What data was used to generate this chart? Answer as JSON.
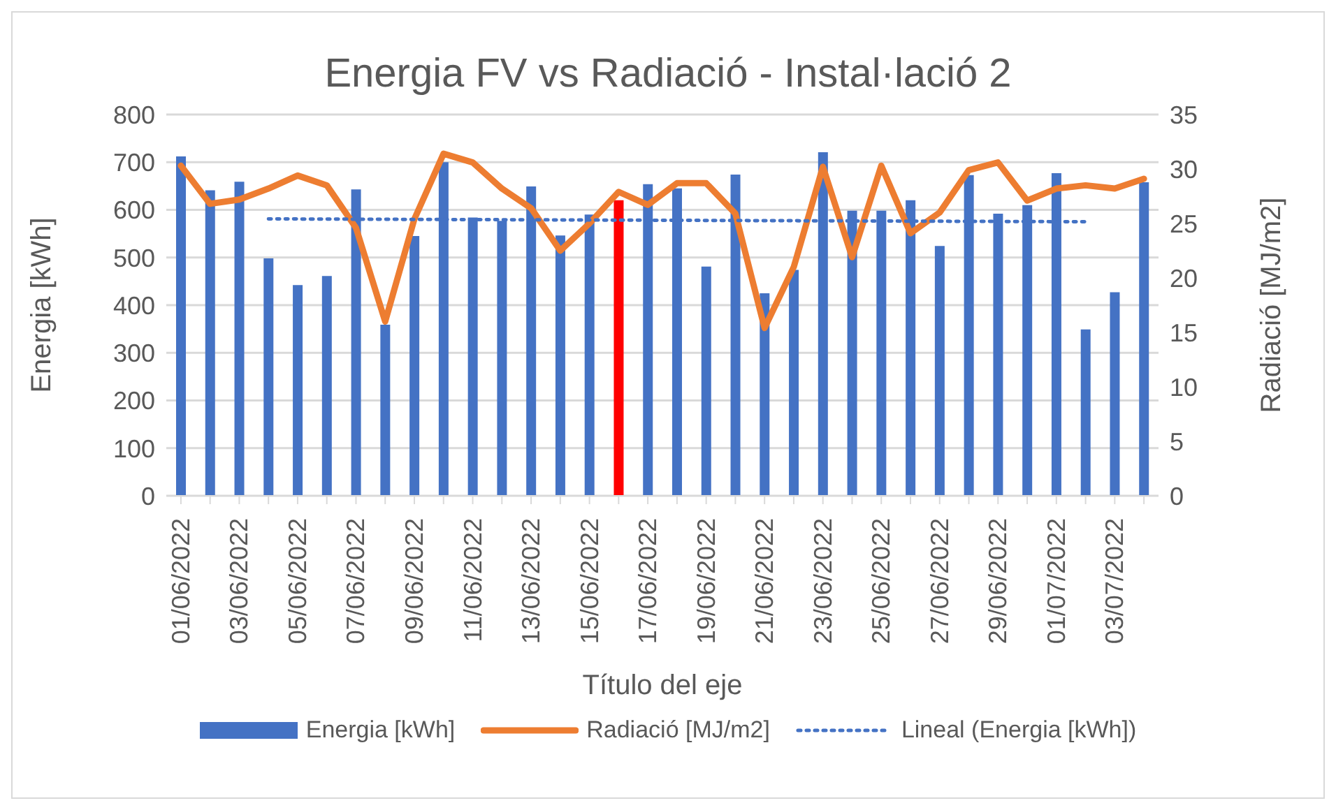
{
  "chart_data": {
    "type": "bar",
    "title": "Energia FV vs Radiació - Instal·lació 2",
    "xlabel": "Título del eje",
    "ylabel": "Energia [kWh]",
    "y2label": "Radiació [MJ/m2]",
    "categories": [
      "01/06/2022",
      null,
      "03/06/2022",
      null,
      "05/06/2022",
      null,
      "07/06/2022",
      null,
      "09/06/2022",
      null,
      "11/06/2022",
      null,
      "13/06/2022",
      null,
      "15/06/2022",
      null,
      "17/06/2022",
      null,
      "19/06/2022",
      null,
      "21/06/2022",
      null,
      "23/06/2022",
      null,
      "25/06/2022",
      null,
      "27/06/2022",
      null,
      "29/06/2022",
      null,
      "01/07/2022",
      null,
      "03/07/2022",
      null
    ],
    "series": [
      {
        "name": "Energia [kWh]",
        "color": "#4472c4",
        "colors": [
          "#4472c4",
          "#4472c4",
          "#4472c4",
          "#4472c4",
          "#4472c4",
          "#4472c4",
          "#4472c4",
          "#4472c4",
          "#4472c4",
          "#4472c4",
          "#4472c4",
          "#4472c4",
          "#4472c4",
          "#4472c4",
          "#4472c4",
          "#ff0000",
          "#4472c4",
          "#4472c4",
          "#4472c4",
          "#4472c4",
          "#4472c4",
          "#4472c4",
          "#4472c4",
          "#4472c4",
          "#4472c4",
          "#4472c4",
          "#4472c4",
          "#4472c4",
          "#4472c4",
          "#4472c4",
          "#4472c4",
          "#4472c4",
          "#4472c4",
          "#4472c4"
        ],
        "values": [
          712,
          641,
          659,
          498,
          442,
          461,
          643,
          359,
          545,
          700,
          584,
          577,
          649,
          546,
          590,
          620,
          654,
          645,
          481,
          674,
          425,
          474,
          721,
          598,
          598,
          620,
          524,
          673,
          592,
          610,
          677,
          349,
          427,
          658
        ]
      },
      {
        "name": "Radiació [MJ/m2]",
        "type": "line",
        "axis": "y2",
        "color": "#ed7d31",
        "values": [
          30.3,
          26.8,
          27.2,
          28.2,
          29.4,
          28.5,
          24.6,
          16.0,
          25.4,
          31.4,
          30.6,
          28.2,
          26.4,
          22.5,
          25.0,
          27.9,
          26.7,
          28.7,
          28.7,
          25.9,
          15.4,
          21.0,
          30.2,
          21.9,
          30.3,
          24.1,
          26.0,
          29.9,
          30.6,
          27.1,
          28.2,
          28.5,
          28.2,
          29.1
        ]
      },
      {
        "name": "Lineal (Energia [kWh])",
        "type": "line",
        "line_style": "dotted",
        "color": "#4472c4",
        "values": [
          null,
          null,
          null,
          581,
          null,
          null,
          null,
          null,
          null,
          null,
          null,
          null,
          null,
          null,
          null,
          null,
          null,
          null,
          null,
          null,
          null,
          null,
          null,
          null,
          null,
          null,
          null,
          null,
          null,
          null,
          null,
          575,
          null,
          null
        ]
      }
    ],
    "ylim": [
      0,
      800
    ],
    "yticks": [
      0,
      100,
      200,
      300,
      400,
      500,
      600,
      700,
      800
    ],
    "y2lim": [
      0,
      35
    ],
    "y2ticks": [
      0,
      5,
      10,
      15,
      20,
      25,
      30,
      35
    ],
    "grid": "y",
    "legend": "bottom",
    "marker": "none"
  }
}
